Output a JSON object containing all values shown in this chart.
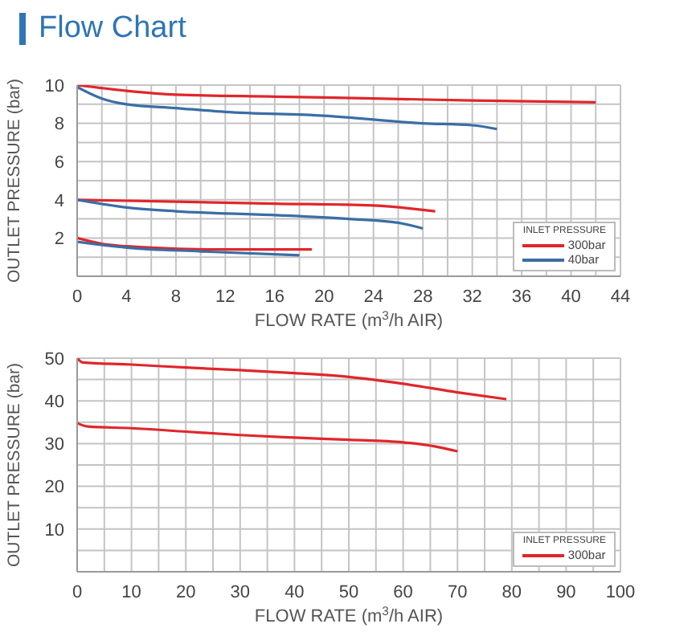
{
  "chart_data": [
    {
      "type": "line",
      "title": "Flow Chart",
      "xlabel": "FLOW RATE (m$^{3}$/h AIR)",
      "ylabel": "OUTLET PRESSURE (bar)",
      "legend_title": "INLET PRESSURE",
      "legend": "bottom right",
      "grid": true,
      "marker": "none",
      "line_style": "solid",
      "xlim": [
        0,
        44
      ],
      "xticks": [
        0,
        {
          "value": 2,
          "label": null
        },
        4,
        {
          "value": 6,
          "label": null
        },
        8,
        {
          "value": 10,
          "label": null
        },
        12,
        {
          "value": 14,
          "label": null
        },
        16,
        {
          "value": 18,
          "label": null
        },
        20,
        {
          "value": 22,
          "label": null
        },
        24,
        {
          "value": 26,
          "label": null
        },
        28,
        {
          "value": 30,
          "label": null
        },
        32,
        {
          "value": 34,
          "label": null
        },
        36,
        {
          "value": 38,
          "label": null
        },
        40,
        {
          "value": 42,
          "label": null
        },
        44
      ],
      "ylim": [
        0,
        10
      ],
      "yticks": [
        {
          "value": 0,
          "label": null
        },
        {
          "value": 1,
          "label": null
        },
        2,
        {
          "value": 3,
          "label": null
        },
        4,
        {
          "value": 5,
          "label": null
        },
        6,
        {
          "value": 7,
          "label": null
        },
        8,
        {
          "value": 9,
          "label": null
        },
        10
      ],
      "series": [
        {
          "name": "300bar",
          "color": "#e0262b",
          "x": [
            0,
            4,
            8,
            16,
            24,
            32,
            42
          ],
          "values": [
            10.0,
            9.7,
            9.5,
            9.4,
            9.3,
            9.2,
            9.1
          ]
        },
        {
          "name": "40bar",
          "color": "#3a6ea5",
          "x": [
            0,
            2,
            4,
            8,
            12,
            20,
            28,
            32,
            34
          ],
          "values": [
            9.9,
            9.3,
            9.0,
            8.8,
            8.6,
            8.4,
            8.0,
            7.9,
            7.7
          ]
        },
        {
          "color": "#e0262b",
          "x": [
            0,
            8,
            16,
            24,
            29
          ],
          "values": [
            4.0,
            3.9,
            3.8,
            3.7,
            3.4
          ]
        },
        {
          "color": "#3a6ea5",
          "x": [
            0,
            4,
            8,
            16,
            22,
            26,
            28
          ],
          "values": [
            4.0,
            3.6,
            3.4,
            3.2,
            3.0,
            2.8,
            2.5
          ]
        },
        {
          "color": "#e0262b",
          "x": [
            0,
            2,
            6,
            12,
            19
          ],
          "values": [
            2.0,
            1.7,
            1.5,
            1.4,
            1.4
          ]
        },
        {
          "color": "#3a6ea5",
          "x": [
            0,
            4,
            10,
            18
          ],
          "values": [
            1.8,
            1.5,
            1.3,
            1.1
          ]
        }
      ]
    },
    {
      "type": "line",
      "xlabel": "FLOW RATE (m$^{3}$/h AIR)",
      "ylabel": "OUTLET PRESSURE (bar)",
      "legend_title": "INLET PRESSURE",
      "legend": "bottom right",
      "grid": true,
      "marker": "none",
      "line_style": "solid",
      "xlim": [
        0,
        100
      ],
      "xticks": [
        0,
        {
          "value": 5,
          "label": null
        },
        10,
        {
          "value": 15,
          "label": null
        },
        20,
        {
          "value": 25,
          "label": null
        },
        30,
        {
          "value": 35,
          "label": null
        },
        40,
        {
          "value": 45,
          "label": null
        },
        50,
        {
          "value": 55,
          "label": null
        },
        60,
        {
          "value": 65,
          "label": null
        },
        70,
        {
          "value": 75,
          "label": null
        },
        80,
        {
          "value": 85,
          "label": null
        },
        90,
        {
          "value": 95,
          "label": null
        },
        100
      ],
      "ylim": [
        0,
        50
      ],
      "yticks": [
        {
          "value": 0,
          "label": null
        },
        {
          "value": 5,
          "label": null
        },
        10,
        {
          "value": 15,
          "label": null
        },
        20,
        {
          "value": 25,
          "label": null
        },
        30,
        {
          "value": 35,
          "label": null
        },
        40,
        {
          "value": 45,
          "label": null
        },
        50
      ],
      "series": [
        {
          "name": "300bar",
          "color": "#e0262b",
          "x": [
            0,
            1,
            10,
            20,
            30,
            40,
            50,
            60,
            70,
            79
          ],
          "values": [
            50,
            49,
            48.5,
            47.8,
            47.2,
            46.5,
            45.6,
            44,
            42,
            40.4
          ]
        },
        {
          "color": "#e0262b",
          "x": [
            0,
            2,
            10,
            20,
            30,
            40,
            50,
            60,
            66,
            70
          ],
          "values": [
            34.8,
            34,
            33.6,
            32.8,
            32,
            31.4,
            30.9,
            30.3,
            29.3,
            28.2
          ]
        }
      ]
    }
  ]
}
